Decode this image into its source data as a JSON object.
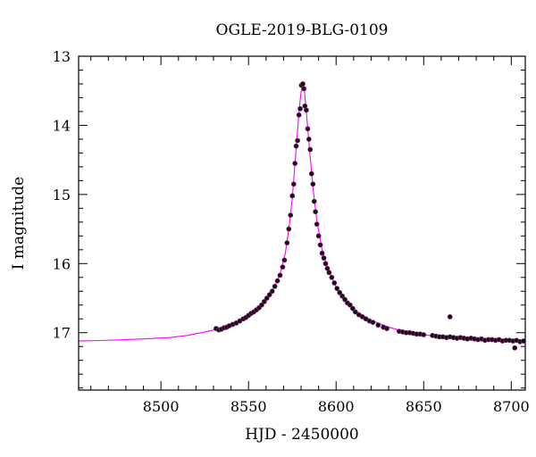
{
  "chart_data": {
    "type": "scatter",
    "title": "OGLE-2019-BLG-0109",
    "xlabel": "HJD - 2450000",
    "ylabel": "I magnitude",
    "xlim": [
      8453,
      8708
    ],
    "ylim": [
      17.83,
      13.0
    ],
    "y_inverted": true,
    "grid": false,
    "x_major_ticks": [
      8500,
      8550,
      8600,
      8650,
      8700
    ],
    "x_minor_step": 10,
    "y_major_ticks": [
      13,
      14,
      15,
      16,
      17
    ],
    "y_minor_step": 0.2,
    "x_tick_labels": [
      "8500",
      "8550",
      "8600",
      "8650",
      "8700"
    ],
    "y_tick_labels": [
      "13",
      "14",
      "15",
      "16",
      "17"
    ],
    "series": [
      {
        "kind": "data",
        "marker": "filled-circle",
        "color": "#111111",
        "edge_color": "#a0208a",
        "points": [
          [
            8531.5,
            16.94
          ],
          [
            8533.0,
            16.96
          ],
          [
            8534.5,
            16.95
          ],
          [
            8536.0,
            16.93
          ],
          [
            8537.5,
            16.92
          ],
          [
            8539.0,
            16.9
          ],
          [
            8541.0,
            16.88
          ],
          [
            8543.0,
            16.86
          ],
          [
            8545.0,
            16.83
          ],
          [
            8547.0,
            16.8
          ],
          [
            8548.5,
            16.78
          ],
          [
            8550.0,
            16.75
          ],
          [
            8551.5,
            16.72
          ],
          [
            8553.0,
            16.7
          ],
          [
            8554.5,
            16.67
          ],
          [
            8556.0,
            16.64
          ],
          [
            8557.5,
            16.6
          ],
          [
            8559.0,
            16.55
          ],
          [
            8560.5,
            16.5
          ],
          [
            8562.0,
            16.45
          ],
          [
            8563.5,
            16.4
          ],
          [
            8565.0,
            16.33
          ],
          [
            8566.5,
            16.25
          ],
          [
            8568.0,
            16.17
          ],
          [
            8569.5,
            16.05
          ],
          [
            8570.5,
            15.95
          ],
          [
            8572.0,
            15.7
          ],
          [
            8573.0,
            15.5
          ],
          [
            8574.0,
            15.3
          ],
          [
            8575.0,
            15.02
          ],
          [
            8575.8,
            14.85
          ],
          [
            8576.5,
            14.55
          ],
          [
            8577.2,
            14.3
          ],
          [
            8578.0,
            14.22
          ],
          [
            8578.8,
            13.85
          ],
          [
            8579.5,
            13.76
          ],
          [
            8580.2,
            13.42
          ],
          [
            8581.0,
            13.4
          ],
          [
            8581.6,
            13.47
          ],
          [
            8582.2,
            13.72
          ],
          [
            8583.0,
            13.78
          ],
          [
            8583.8,
            14.05
          ],
          [
            8584.5,
            14.2
          ],
          [
            8585.2,
            14.35
          ],
          [
            8586.0,
            14.7
          ],
          [
            8586.8,
            14.85
          ],
          [
            8587.5,
            15.1
          ],
          [
            8588.2,
            15.25
          ],
          [
            8589.0,
            15.43
          ],
          [
            8590.0,
            15.6
          ],
          [
            8591.0,
            15.73
          ],
          [
            8592.0,
            15.85
          ],
          [
            8593.0,
            15.92
          ],
          [
            8594.0,
            16.0
          ],
          [
            8595.0,
            16.07
          ],
          [
            8596.0,
            16.13
          ],
          [
            8597.5,
            16.2
          ],
          [
            8599.0,
            16.28
          ],
          [
            8600.5,
            16.36
          ],
          [
            8602.0,
            16.42
          ],
          [
            8603.5,
            16.47
          ],
          [
            8605.0,
            16.52
          ],
          [
            8606.5,
            16.57
          ],
          [
            8608.0,
            16.6
          ],
          [
            8609.5,
            16.65
          ],
          [
            8611.0,
            16.7
          ],
          [
            8613.0,
            16.74
          ],
          [
            8615.0,
            16.77
          ],
          [
            8617.0,
            16.8
          ],
          [
            8619.0,
            16.83
          ],
          [
            8621.0,
            16.85
          ],
          [
            8624.0,
            16.89
          ],
          [
            8627.0,
            16.92
          ],
          [
            8629.0,
            16.94
          ],
          [
            8636.0,
            16.98
          ],
          [
            8638.0,
            16.99
          ],
          [
            8640.0,
            17.0
          ],
          [
            8642.0,
            17.0
          ],
          [
            8644.0,
            17.01
          ],
          [
            8646.0,
            17.02
          ],
          [
            8648.0,
            17.02
          ],
          [
            8650.0,
            17.03
          ],
          [
            8655.0,
            17.04
          ],
          [
            8657.0,
            17.05
          ],
          [
            8659.0,
            17.06
          ],
          [
            8661.0,
            17.06
          ],
          [
            8663.0,
            17.07
          ],
          [
            8665.0,
            17.06
          ],
          [
            8665.0,
            16.77
          ],
          [
            8667.0,
            17.07
          ],
          [
            8669.0,
            17.08
          ],
          [
            8671.0,
            17.07
          ],
          [
            8673.0,
            17.08
          ],
          [
            8675.0,
            17.09
          ],
          [
            8677.0,
            17.08
          ],
          [
            8679.0,
            17.09
          ],
          [
            8681.0,
            17.1
          ],
          [
            8683.0,
            17.09
          ],
          [
            8685.0,
            17.11
          ],
          [
            8687.0,
            17.1
          ],
          [
            8689.0,
            17.1
          ],
          [
            8691.0,
            17.11
          ],
          [
            8693.0,
            17.1
          ],
          [
            8695.0,
            17.12
          ],
          [
            8697.0,
            17.11
          ],
          [
            8699.0,
            17.11
          ],
          [
            8701.0,
            17.12
          ],
          [
            8702.0,
            17.22
          ],
          [
            8703.0,
            17.11
          ],
          [
            8705.0,
            17.13
          ],
          [
            8707.0,
            17.12
          ]
        ]
      },
      {
        "kind": "model",
        "color": "#ff00ff",
        "curve": [
          [
            8453,
            17.12
          ],
          [
            8470,
            17.11
          ],
          [
            8490,
            17.09
          ],
          [
            8505,
            17.07
          ],
          [
            8515,
            17.04
          ],
          [
            8525,
            16.99
          ],
          [
            8532,
            16.95
          ],
          [
            8540,
            16.89
          ],
          [
            8548,
            16.78
          ],
          [
            8555,
            16.66
          ],
          [
            8560,
            16.52
          ],
          [
            8565,
            16.33
          ],
          [
            8568,
            16.15
          ],
          [
            8571,
            15.85
          ],
          [
            8573,
            15.5
          ],
          [
            8575,
            15.05
          ],
          [
            8577,
            14.4
          ],
          [
            8579,
            13.75
          ],
          [
            8580,
            13.52
          ],
          [
            8581,
            13.42
          ],
          [
            8582,
            13.52
          ],
          [
            8583,
            13.8
          ],
          [
            8585,
            14.4
          ],
          [
            8587,
            14.95
          ],
          [
            8589,
            15.38
          ],
          [
            8592,
            15.8
          ],
          [
            8595,
            16.05
          ],
          [
            8600,
            16.34
          ],
          [
            8605,
            16.53
          ],
          [
            8612,
            16.7
          ],
          [
            8620,
            16.82
          ],
          [
            8630,
            16.92
          ],
          [
            8640,
            16.99
          ],
          [
            8650,
            17.03
          ],
          [
            8660,
            17.06
          ],
          [
            8670,
            17.08
          ],
          [
            8680,
            17.09
          ],
          [
            8690,
            17.1
          ],
          [
            8700,
            17.11
          ],
          [
            8708,
            17.12
          ]
        ]
      }
    ]
  }
}
